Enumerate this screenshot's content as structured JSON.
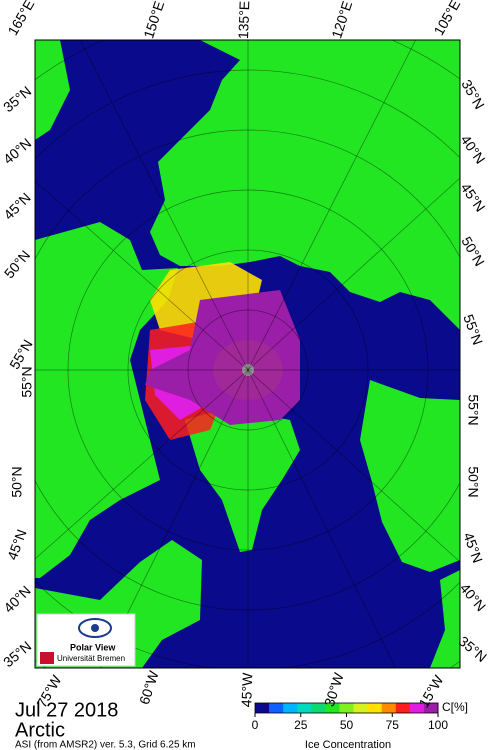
{
  "map": {
    "top_labels": [
      "165°E",
      "150°E",
      "135°E",
      "120°E",
      "105°E"
    ],
    "left_labels": [
      "35°N",
      "40°N",
      "45°N",
      "50°N",
      "55°N",
      "55°N",
      "50°N",
      "45°N",
      "40°N",
      "35°N"
    ],
    "right_labels": [
      "35°N",
      "40°N",
      "45°N",
      "50°N",
      "55°N",
      "55°N",
      "50°N",
      "45°N",
      "40°N",
      "35°N"
    ],
    "bottom_labels": [
      "75°W",
      "60°W",
      "45°W",
      "30°W",
      "15°W"
    ]
  },
  "footer": {
    "date": "Jul 27 2018",
    "region": "Arctic",
    "source": "ASI (from AMSR2) ver. 5.3,  Grid 6.25 km"
  },
  "logo": {
    "title": "Polar View",
    "institution": "Universität Bremen"
  },
  "colorbar": {
    "unit": "C[%]",
    "label": "Ice Concentration",
    "ticks": [
      0,
      25,
      50,
      75,
      100
    ],
    "range": [
      0,
      100
    ],
    "colors": [
      "#0a0a8c",
      "#1060ff",
      "#00b4ff",
      "#00d8c0",
      "#10d870",
      "#22e622",
      "#80f020",
      "#d8f020",
      "#ffe000",
      "#ff8a00",
      "#ff1e1e",
      "#e01ee0",
      "#9a1ea8"
    ]
  }
}
